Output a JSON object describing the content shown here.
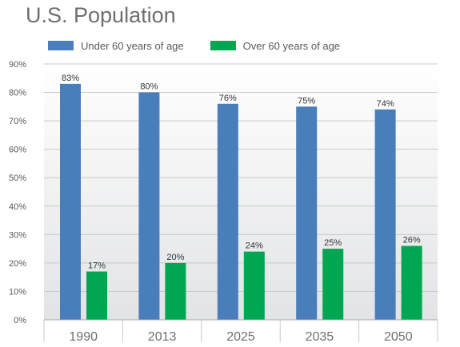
{
  "chart_data": {
    "type": "bar",
    "title": "U.S. Population",
    "categories": [
      "1990",
      "2013",
      "2025",
      "2035",
      "2050"
    ],
    "series": [
      {
        "name": "Under 60 years of age",
        "color": "#4a7ebb",
        "values": [
          83,
          80,
          76,
          75,
          74
        ],
        "labels": [
          "83%",
          "80%",
          "76%",
          "75%",
          "74%"
        ]
      },
      {
        "name": "Over 60 years of age",
        "color": "#00a651",
        "values": [
          17,
          20,
          24,
          25,
          26
        ],
        "labels": [
          "17%",
          "20%",
          "24%",
          "25%",
          "26%"
        ]
      }
    ],
    "ylim": [
      0,
      90
    ],
    "yticks": [
      0,
      10,
      20,
      30,
      40,
      50,
      60,
      70,
      80,
      90
    ],
    "ytick_labels": [
      "0%",
      "10%",
      "20%",
      "30%",
      "40%",
      "50%",
      "60%",
      "70%",
      "80%",
      "90%"
    ],
    "grid": true,
    "legend_position": "top-left"
  }
}
